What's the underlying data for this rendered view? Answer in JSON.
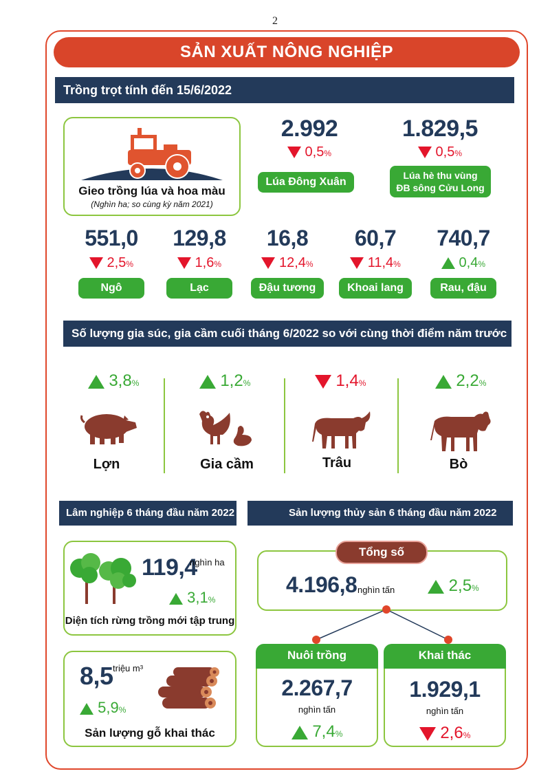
{
  "page_number": "2",
  "title": "SẢN XUẤT NÔNG NGHIỆP",
  "colors": {
    "accent_red": "#d9452a",
    "navy": "#233a5a",
    "green": "#39a935",
    "light_green": "#8cc63f",
    "down_red": "#e3152b",
    "brown": "#8a3b2e"
  },
  "crops": {
    "header": "Trồng trọt tính đến 15/6/2022",
    "summary": {
      "icon": "tractor-icon",
      "title": "Gieo trồng lúa và hoa màu",
      "subtitle": "(Nghìn ha; so cùng kỳ năm 2021)"
    },
    "top_items": [
      {
        "value": "2.992",
        "direction": "down",
        "change": "0,5",
        "unit": "%",
        "label": "Lúa Đông Xuân"
      },
      {
        "value": "1.829,5",
        "direction": "down",
        "change": "0,5",
        "unit": "%",
        "label_line1": "Lúa hè thu vùng",
        "label_line2": "ĐB sông Cửu Long"
      }
    ],
    "items": [
      {
        "value": "551,0",
        "direction": "down",
        "change": "2,5",
        "unit": "%",
        "label": "Ngô"
      },
      {
        "value": "129,8",
        "direction": "down",
        "change": "1,6",
        "unit": "%",
        "label": "Lạc"
      },
      {
        "value": "16,8",
        "direction": "down",
        "change": "12,4",
        "unit": "%",
        "label": "Đậu tương"
      },
      {
        "value": "60,7",
        "direction": "down",
        "change": "11,4",
        "unit": "%",
        "label": "Khoai lang"
      },
      {
        "value": "740,7",
        "direction": "up",
        "change": "0,4",
        "unit": "%",
        "label": "Rau, đậu"
      }
    ]
  },
  "livestock": {
    "header": "Số lượng gia súc, gia cầm cuối tháng 6/2022 so với cùng thời điểm năm trước",
    "items": [
      {
        "direction": "up",
        "change": "3,8",
        "unit": "%",
        "label": "Lợn",
        "icon": "pig-icon"
      },
      {
        "direction": "up",
        "change": "1,2",
        "unit": "%",
        "label": "Gia cầm",
        "icon": "poultry-icon"
      },
      {
        "direction": "down",
        "change": "1,4",
        "unit": "%",
        "label": "Trâu",
        "icon": "buffalo-icon"
      },
      {
        "direction": "up",
        "change": "2,2",
        "unit": "%",
        "label": "Bò",
        "icon": "cow-icon"
      }
    ]
  },
  "forestry": {
    "header": "Lâm nghiệp 6 tháng đầu năm 2022",
    "planted": {
      "value": "119,4",
      "unit": "nghìn ha",
      "direction": "up",
      "change": "3,1",
      "pct": "%",
      "label": "Diện tích rừng trồng mới tập trung",
      "icon": "trees-icon"
    },
    "timber": {
      "value": "8,5",
      "unit": "triệu m³",
      "direction": "up",
      "change": "5,9",
      "pct": "%",
      "label": "Sản lượng gỗ khai thác",
      "icon": "logs-icon"
    }
  },
  "fishery": {
    "header": "Sản lượng thủy sản 6 tháng đầu năm 2022",
    "total": {
      "label": "Tổng số",
      "value": "4.196,8",
      "unit": "nghìn tấn",
      "direction": "up",
      "change": "2,5",
      "pct": "%"
    },
    "farming": {
      "label": "Nuôi trồng",
      "value": "2.267,7",
      "unit": "nghìn tấn",
      "direction": "up",
      "change": "7,4",
      "pct": "%"
    },
    "catching": {
      "label": "Khai thác",
      "value": "1.929,1",
      "unit": "nghìn tấn",
      "direction": "down",
      "change": "2,6",
      "pct": "%"
    }
  }
}
